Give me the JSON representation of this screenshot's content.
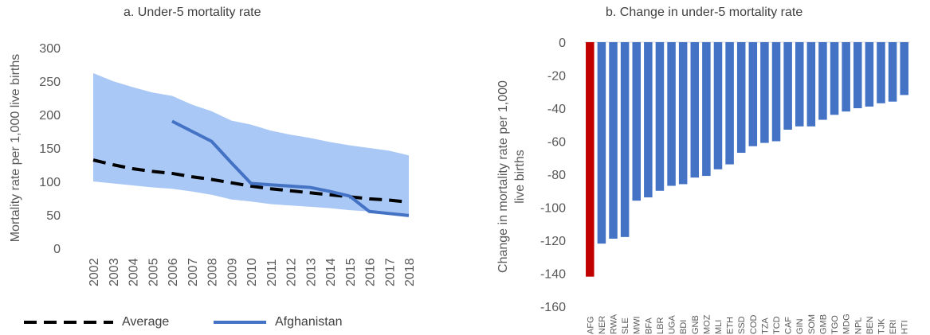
{
  "chart_data": [
    {
      "type": "line",
      "title": "a. Under-5 mortality rate",
      "ylabel": "Mortality rate per 1,000 live births",
      "xlabel": "",
      "ylim": [
        0,
        300
      ],
      "yticks": [
        "0",
        "50",
        "100",
        "150",
        "200",
        "250",
        "300"
      ],
      "x": [
        "2002",
        "2003",
        "2004",
        "2005",
        "2006",
        "2007",
        "2008",
        "2009",
        "2010",
        "2011",
        "2012",
        "2013",
        "2014",
        "2015",
        "2016",
        "2017",
        "2018"
      ],
      "band": {
        "upper": [
          262,
          250,
          241,
          233,
          228,
          215,
          205,
          191,
          185,
          176,
          170,
          165,
          159,
          154,
          150,
          146,
          139
        ],
        "lower": [
          100,
          97,
          94,
          91,
          89,
          85,
          80,
          73,
          70,
          66,
          64,
          62,
          60,
          57,
          55,
          53,
          50
        ],
        "color": "#a9c8f5"
      },
      "series": [
        {
          "name": "Average",
          "style": "dashed",
          "color": "#000000",
          "values": [
            132,
            125,
            119,
            115,
            112,
            107,
            103,
            98,
            93,
            89,
            86,
            83,
            80,
            77,
            74,
            72,
            69
          ]
        },
        {
          "name": "Afghanistan",
          "style": "solid",
          "color": "#4472c4",
          "values": [
            null,
            null,
            null,
            null,
            190,
            175,
            160,
            128,
            97,
            95,
            93,
            91,
            85,
            78,
            55,
            52,
            49
          ]
        }
      ],
      "legend": "bottom",
      "grid": false
    },
    {
      "type": "bar",
      "title": "b. Change in under-5 mortality rate",
      "ylabel": "Change in mortality rate per 1,000 live births",
      "xlabel": "",
      "ylim": [
        -160,
        0
      ],
      "yticks": [
        "0",
        "-20",
        "-40",
        "-60",
        "-80",
        "-100",
        "-120",
        "-140",
        "-160"
      ],
      "categories": [
        "AFG",
        "NER",
        "RWA",
        "SLE",
        "MWI",
        "BFA",
        "LBR",
        "UGA",
        "BDI",
        "GNB",
        "MOZ",
        "MLI",
        "ETH",
        "SSD",
        "COD",
        "TZA",
        "TCD",
        "CAF",
        "GIN",
        "SOM",
        "GMB",
        "TGO",
        "MDG",
        "NPL",
        "BEN",
        "TJK",
        "ERI",
        "HTI"
      ],
      "values": [
        -142,
        -122,
        -119,
        -118,
        -96,
        -94,
        -90,
        -87,
        -86,
        -82,
        -81,
        -77,
        -74,
        -67,
        -63,
        -61,
        -60,
        -53,
        -51,
        -51,
        -47,
        -44,
        -42,
        -40,
        -39,
        -37,
        -36,
        -32
      ],
      "highlight": "AFG",
      "colors": {
        "bar": "#4472c4",
        "highlight": "#c00000"
      },
      "grid": false
    }
  ]
}
